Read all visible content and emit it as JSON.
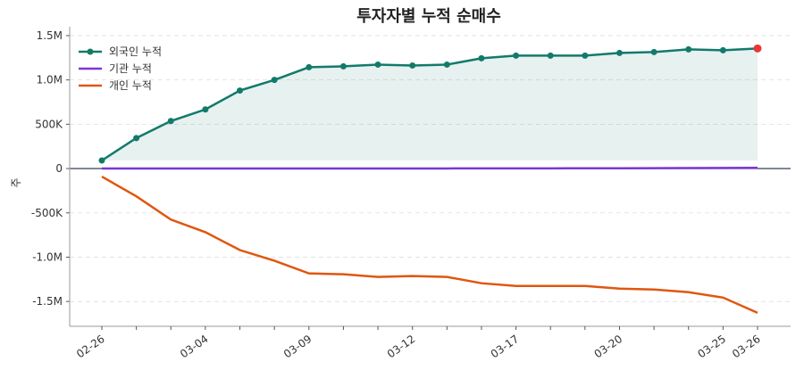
{
  "chart_data": {
    "type": "line",
    "title": "투자자별 누적 순매수",
    "y_label": "주",
    "categories": [
      "02-26",
      null,
      null,
      "03-04",
      null,
      null,
      "03-09",
      null,
      null,
      "03-12",
      null,
      null,
      "03-17",
      null,
      null,
      "03-20",
      null,
      null,
      "03-25",
      "03-26"
    ],
    "series": [
      {
        "name": "외국인 누적",
        "color": "#127a6b",
        "marker": true,
        "fill": true,
        "last_point_color": "#e53935",
        "values": [
          91000,
          344000,
          536000,
          667000,
          880000,
          1000000,
          1143000,
          1153000,
          1173000,
          1163000,
          1173000,
          1244000,
          1274000,
          1274000,
          1274000,
          1304000,
          1314000,
          1345000,
          1335000,
          1355000
        ]
      },
      {
        "name": "기관 누적",
        "color": "#7b35d8",
        "marker": false,
        "fill": false,
        "values": [
          0,
          0,
          0,
          0,
          0,
          0,
          0,
          0,
          0,
          1000,
          1000,
          2000,
          2000,
          2000,
          3000,
          3000,
          4000,
          6000,
          7000,
          8000
        ]
      },
      {
        "name": "개인 누적",
        "color": "#e0560f",
        "marker": false,
        "fill": false,
        "values": [
          -91000,
          -313000,
          -576000,
          -718000,
          -920000,
          -1040000,
          -1183000,
          -1193000,
          -1223000,
          -1213000,
          -1223000,
          -1294000,
          -1325000,
          -1325000,
          -1325000,
          -1355000,
          -1365000,
          -1395000,
          -1456000,
          -1628000
        ]
      }
    ],
    "ylim": [
      -1780000,
      1600000
    ],
    "yticks": [
      {
        "value": -1500000,
        "label": "-1.5M"
      },
      {
        "value": -1000000,
        "label": "-1.0M"
      },
      {
        "value": -500000,
        "label": "-500K"
      },
      0,
      {
        "value": 500000,
        "label": "500K"
      },
      {
        "value": 1000000,
        "label": "1.0M"
      },
      {
        "value": 1500000,
        "label": "1.5M"
      }
    ],
    "grid": true,
    "legend": "upper-left"
  }
}
